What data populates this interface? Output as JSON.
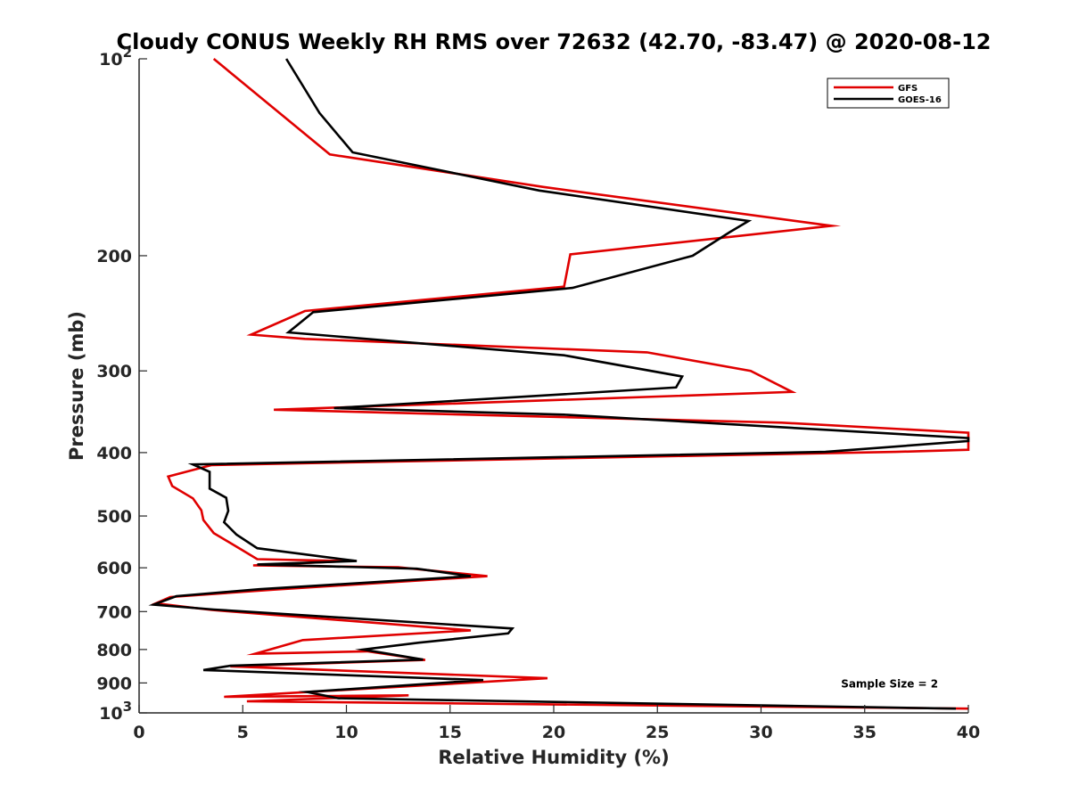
{
  "chart_data": {
    "type": "line",
    "title": "Cloudy CONUS Weekly RH RMS over 72632 (42.70, -83.47) @ 2020-08-12",
    "xlabel": "Relative Humidity (%)",
    "ylabel": "Pressure (mb)",
    "xlim": [
      0,
      40
    ],
    "ylim": [
      100,
      1000
    ],
    "y_scale": "log",
    "y_reversed": true,
    "grid": false,
    "legend_position": "top-right",
    "x_ticks": [
      0,
      5,
      10,
      15,
      20,
      25,
      30,
      35,
      40
    ],
    "x_tick_labels": [
      "0",
      "5",
      "10",
      "15",
      "20",
      "25",
      "30",
      "35",
      "40"
    ],
    "y_ticks": [
      100,
      200,
      300,
      400,
      500,
      600,
      700,
      800,
      900,
      1000
    ],
    "y_tick_labels": [
      {
        "base": "10",
        "exp": "2"
      },
      {
        "base": "200",
        "exp": ""
      },
      {
        "base": "300",
        "exp": ""
      },
      {
        "base": "400",
        "exp": ""
      },
      {
        "base": "500",
        "exp": ""
      },
      {
        "base": "600",
        "exp": ""
      },
      {
        "base": "700",
        "exp": ""
      },
      {
        "base": "800",
        "exp": ""
      },
      {
        "base": "900",
        "exp": ""
      },
      {
        "base": "10",
        "exp": "3"
      }
    ],
    "annotations": [
      {
        "text": "Sample Size = 2",
        "x": 36.2,
        "y": 900
      }
    ],
    "series": [
      {
        "name": "GFS",
        "color": "#e00000",
        "points": [
          [
            3.6,
            100
          ],
          [
            9.2,
            140
          ],
          [
            19.5,
            157
          ],
          [
            33.4,
            180
          ],
          [
            20.8,
            199
          ],
          [
            20.5,
            223
          ],
          [
            8.0,
            243
          ],
          [
            5.4,
            264
          ],
          [
            8.0,
            268
          ],
          [
            24.5,
            281
          ],
          [
            29.5,
            300
          ],
          [
            31.5,
            323
          ],
          [
            6.5,
            344
          ],
          [
            31.0,
            360
          ],
          [
            40.0,
            373
          ],
          [
            40.0,
            396
          ],
          [
            36.5,
            399
          ],
          [
            3.5,
            418
          ],
          [
            1.4,
            435
          ],
          [
            1.6,
            450
          ],
          [
            2.6,
            470
          ],
          [
            3.0,
            490
          ],
          [
            3.1,
            507
          ],
          [
            3.6,
            531
          ],
          [
            4.9,
            562
          ],
          [
            5.7,
            582
          ],
          [
            10.0,
            586
          ],
          [
            5.5,
            595
          ],
          [
            12.5,
            599
          ],
          [
            16.8,
            618
          ],
          [
            6.5,
            648
          ],
          [
            1.5,
            665
          ],
          [
            0.8,
            680
          ],
          [
            3.5,
            696
          ],
          [
            16.0,
            748
          ],
          [
            7.9,
            774
          ],
          [
            5.6,
            812
          ],
          [
            11.0,
            805
          ],
          [
            13.8,
            830
          ],
          [
            4.4,
            849
          ],
          [
            19.7,
            885
          ],
          [
            4.1,
            945
          ],
          [
            13.0,
            940
          ],
          [
            5.2,
            960
          ],
          [
            40.0,
            985
          ]
        ]
      },
      {
        "name": "GOES-16",
        "color": "#000000",
        "points": [
          [
            7.1,
            100
          ],
          [
            8.7,
            121
          ],
          [
            10.3,
            139
          ],
          [
            19.3,
            159
          ],
          [
            29.4,
            177
          ],
          [
            28.5,
            184
          ],
          [
            26.7,
            200
          ],
          [
            20.9,
            224
          ],
          [
            8.4,
            244
          ],
          [
            7.2,
            262
          ],
          [
            20.5,
            284
          ],
          [
            26.2,
            306
          ],
          [
            25.9,
            318
          ],
          [
            9.4,
            342
          ],
          [
            20.5,
            350
          ],
          [
            40.0,
            380
          ],
          [
            40.0,
            384
          ],
          [
            33.1,
            399
          ],
          [
            2.6,
            417
          ],
          [
            3.4,
            428
          ],
          [
            3.4,
            454
          ],
          [
            4.2,
            469
          ],
          [
            4.3,
            491
          ],
          [
            4.1,
            511
          ],
          [
            4.7,
            534
          ],
          [
            5.7,
            560
          ],
          [
            10.5,
            586
          ],
          [
            5.7,
            593
          ],
          [
            13.4,
            602
          ],
          [
            16.0,
            618
          ],
          [
            5.8,
            647
          ],
          [
            1.8,
            663
          ],
          [
            0.7,
            683
          ],
          [
            3.6,
            695
          ],
          [
            18.0,
            743
          ],
          [
            17.8,
            756
          ],
          [
            13.5,
            781
          ],
          [
            10.8,
            800
          ],
          [
            13.7,
            829
          ],
          [
            4.4,
            847
          ],
          [
            3.1,
            860
          ],
          [
            16.6,
            891
          ],
          [
            8.1,
            929
          ],
          [
            9.6,
            950
          ],
          [
            39.4,
            985
          ]
        ]
      }
    ]
  }
}
